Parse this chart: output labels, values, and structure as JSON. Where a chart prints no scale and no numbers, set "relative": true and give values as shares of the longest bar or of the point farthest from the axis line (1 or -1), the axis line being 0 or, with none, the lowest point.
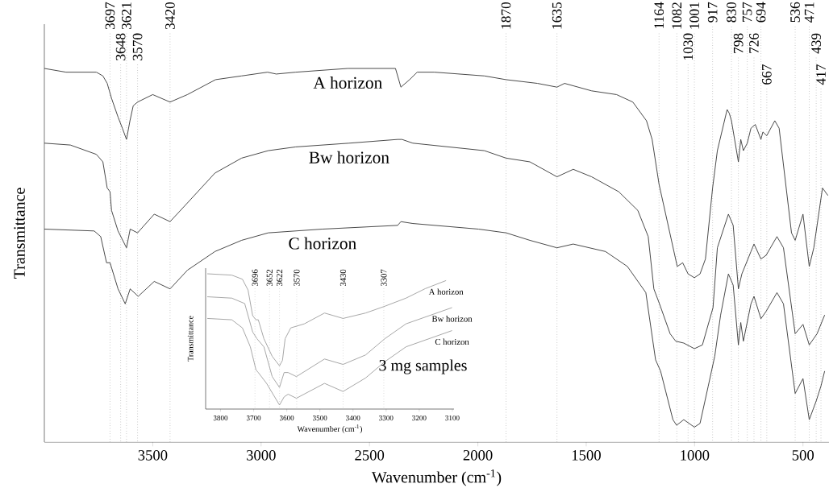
{
  "chart_data": [
    {
      "type": "line",
      "xlabel": "Wavenumber (cm$^{-1}$)",
      "ylabel": "Transmittance",
      "relative": true,
      "xlim": [
        4000,
        380
      ],
      "xticks": [
        3500,
        3000,
        2500,
        2000,
        1500,
        1000,
        500
      ],
      "tick_labels": "x",
      "series": [
        {
          "name": "A horizon",
          "color": "#3c3c3c",
          "x": [
            4000,
            3900,
            3800,
            3760,
            3730,
            3710,
            3700,
            3690,
            3660,
            3640,
            3621,
            3605,
            3590,
            3570,
            3500,
            3420,
            3340,
            3210,
            3090,
            2970,
            2930,
            2840,
            2600,
            2380,
            2355,
            2315,
            2280,
            2200,
            1970,
            1870,
            1725,
            1635,
            1600,
            1475,
            1360,
            1285,
            1222,
            1196,
            1164,
            1080,
            1055,
            1030,
            1001,
            975,
            950,
            917,
            895,
            850,
            840,
            830,
            798,
            787,
            775,
            757,
            740,
            720,
            694,
            685,
            667,
            630,
            610,
            553,
            536,
            500,
            471,
            450,
            410,
            385
          ],
          "values": [
            1.0,
            0.99,
            0.99,
            0.99,
            0.98,
            0.96,
            0.94,
            0.92,
            0.87,
            0.84,
            0.81,
            0.86,
            0.9,
            0.91,
            0.93,
            0.91,
            0.93,
            0.97,
            0.98,
            0.99,
            0.985,
            0.99,
            1.0,
            1.0,
            0.95,
            0.97,
            0.99,
            0.99,
            0.98,
            0.97,
            0.96,
            0.95,
            0.96,
            0.94,
            0.93,
            0.91,
            0.86,
            0.81,
            0.69,
            0.47,
            0.48,
            0.45,
            0.44,
            0.45,
            0.49,
            0.68,
            0.78,
            0.89,
            0.88,
            0.86,
            0.75,
            0.81,
            0.78,
            0.8,
            0.84,
            0.85,
            0.81,
            0.83,
            0.82,
            0.86,
            0.84,
            0.56,
            0.54,
            0.61,
            0.47,
            0.52,
            0.68,
            0.66
          ]
        },
        {
          "name": "Bw horizon",
          "color": "#3c3c3c",
          "x": [
            4000,
            3880,
            3760,
            3730,
            3710,
            3697,
            3690,
            3660,
            3621,
            3604,
            3570,
            3493,
            3420,
            3340,
            3213,
            3090,
            2967,
            2840,
            2594,
            2370,
            2350,
            2300,
            1970,
            1870,
            1760,
            1635,
            1560,
            1475,
            1350,
            1262,
            1214,
            1188,
            1162,
            1113,
            1087,
            1050,
            1001,
            964,
            915,
            895,
            844,
            822,
            798,
            782,
            740,
            726,
            694,
            670,
            620,
            590,
            536,
            500,
            471,
            435,
            400
          ],
          "values": [
            0.8,
            0.795,
            0.77,
            0.75,
            0.68,
            0.67,
            0.62,
            0.565,
            0.52,
            0.57,
            0.56,
            0.61,
            0.59,
            0.64,
            0.72,
            0.76,
            0.78,
            0.79,
            0.8,
            0.81,
            0.81,
            0.8,
            0.78,
            0.76,
            0.75,
            0.71,
            0.73,
            0.71,
            0.67,
            0.62,
            0.55,
            0.41,
            0.37,
            0.29,
            0.27,
            0.265,
            0.25,
            0.26,
            0.36,
            0.52,
            0.61,
            0.58,
            0.41,
            0.45,
            0.51,
            0.53,
            0.49,
            0.5,
            0.55,
            0.52,
            0.29,
            0.315,
            0.26,
            0.29,
            0.34
          ]
        },
        {
          "name": "C horizon",
          "color": "#3c3c3c",
          "x": [
            4000,
            3770,
            3740,
            3713,
            3697,
            3660,
            3627,
            3604,
            3567,
            3493,
            3420,
            3340,
            3213,
            3090,
            2967,
            2717,
            2370,
            2355,
            2300,
            1997,
            1870,
            1760,
            1635,
            1560,
            1411,
            1310,
            1225,
            1180,
            1157,
            1100,
            1083,
            1050,
            1001,
            975,
            937,
            907,
            880,
            844,
            822,
            798,
            787,
            775,
            740,
            726,
            694,
            670,
            620,
            590,
            536,
            500,
            471,
            439,
            417,
            400
          ],
          "values": [
            0.57,
            0.565,
            0.55,
            0.48,
            0.48,
            0.41,
            0.37,
            0.41,
            0.39,
            0.43,
            0.41,
            0.46,
            0.51,
            0.54,
            0.56,
            0.57,
            0.58,
            0.59,
            0.585,
            0.57,
            0.56,
            0.54,
            0.52,
            0.53,
            0.51,
            0.47,
            0.4,
            0.22,
            0.19,
            0.06,
            0.045,
            0.06,
            0.04,
            0.05,
            0.15,
            0.23,
            0.34,
            0.45,
            0.42,
            0.26,
            0.32,
            0.27,
            0.37,
            0.39,
            0.33,
            0.35,
            0.4,
            0.37,
            0.13,
            0.17,
            0.06,
            0.11,
            0.15,
            0.19
          ]
        }
      ],
      "ref_lines": [
        {
          "axis": "x",
          "value": 3697,
          "label": "3697",
          "color": "#8c8c8c",
          "line_style": "dotted"
        },
        {
          "axis": "x",
          "value": 3648,
          "label": "3648",
          "color": "#8c8c8c",
          "line_style": "dotted"
        },
        {
          "axis": "x",
          "value": 3621,
          "label": "3621",
          "color": "#8c8c8c",
          "line_style": "dotted"
        },
        {
          "axis": "x",
          "value": 3570,
          "label": "3570",
          "color": "#8c8c8c",
          "line_style": "dotted"
        },
        {
          "axis": "x",
          "value": 3420,
          "label": "3420",
          "color": "#8c8c8c",
          "line_style": "dotted"
        },
        {
          "axis": "x",
          "value": 1870,
          "label": "1870",
          "color": "#8c8c8c",
          "line_style": "dotted"
        },
        {
          "axis": "x",
          "value": 1635,
          "label": "1635",
          "color": "#8c8c8c",
          "line_style": "dotted"
        },
        {
          "axis": "x",
          "value": 1164,
          "label": "1164",
          "color": "#8c8c8c",
          "line_style": "dotted"
        },
        {
          "axis": "x",
          "value": 1082,
          "label": "1082",
          "color": "#8c8c8c",
          "line_style": "dotted"
        },
        {
          "axis": "x",
          "value": 1030,
          "label": "1030",
          "color": "#8c8c8c",
          "line_style": "dotted"
        },
        {
          "axis": "x",
          "value": 1001,
          "label": "1001",
          "color": "#8c8c8c",
          "line_style": "dotted"
        },
        {
          "axis": "x",
          "value": 917,
          "label": "917",
          "color": "#8c8c8c",
          "line_style": "dotted"
        },
        {
          "axis": "x",
          "value": 830,
          "label": "830",
          "color": "#8c8c8c",
          "line_style": "dotted"
        },
        {
          "axis": "x",
          "value": 798,
          "label": "798",
          "color": "#8c8c8c",
          "line_style": "dotted"
        },
        {
          "axis": "x",
          "value": 757,
          "label": "757",
          "color": "#8c8c8c",
          "line_style": "dotted"
        },
        {
          "axis": "x",
          "value": 726,
          "label": "726",
          "color": "#8c8c8c",
          "line_style": "dotted"
        },
        {
          "axis": "x",
          "value": 694,
          "label": "694",
          "color": "#8c8c8c",
          "line_style": "dotted"
        },
        {
          "axis": "x",
          "value": 667,
          "label": "667",
          "color": "#8c8c8c",
          "line_style": "dotted"
        },
        {
          "axis": "x",
          "value": 536,
          "label": "536",
          "color": "#8c8c8c",
          "line_style": "dotted"
        },
        {
          "axis": "x",
          "value": 471,
          "label": "471",
          "color": "#8c8c8c",
          "line_style": "dotted"
        },
        {
          "axis": "x",
          "value": 439,
          "label": "439",
          "color": "#8c8c8c",
          "line_style": "dotted"
        },
        {
          "axis": "x",
          "value": 417,
          "label": "417",
          "color": "#8c8c8c",
          "line_style": "dotted"
        }
      ]
    },
    {
      "type": "line",
      "xlabel": "Wavenumber (cm$^{-1}$)",
      "ylabel": "Transmittance",
      "relative": true,
      "xlim": [
        3845,
        3095
      ],
      "xticks": [
        3800,
        3700,
        3600,
        3500,
        3400,
        3300,
        3200,
        3100
      ],
      "tick_labels": "x",
      "series": [
        {
          "name": "A horizon",
          "color": "#a0a0a0",
          "x": [
            3840,
            3766,
            3734,
            3717,
            3703,
            3693,
            3686,
            3669,
            3644,
            3622,
            3613,
            3605,
            3588,
            3547,
            3486,
            3430,
            3362,
            3304,
            3240,
            3182,
            3119
          ],
          "values": [
            1.0,
            0.99,
            0.96,
            0.88,
            0.69,
            0.66,
            0.66,
            0.52,
            0.39,
            0.32,
            0.36,
            0.52,
            0.6,
            0.63,
            0.71,
            0.67,
            0.71,
            0.76,
            0.82,
            0.89,
            0.95
          ]
        },
        {
          "name": "Bw horizon",
          "color": "#a0a0a0",
          "x": [
            3840,
            3766,
            3727,
            3703,
            3690,
            3669,
            3644,
            3622,
            3608,
            3596,
            3571,
            3486,
            3430,
            3362,
            3304,
            3240,
            3101
          ],
          "values": [
            0.83,
            0.82,
            0.78,
            0.57,
            0.52,
            0.46,
            0.24,
            0.16,
            0.27,
            0.27,
            0.24,
            0.37,
            0.33,
            0.4,
            0.52,
            0.63,
            0.75
          ]
        },
        {
          "name": "C horizon",
          "color": "#a0a0a0",
          "x": [
            3840,
            3766,
            3734,
            3710,
            3693,
            3686,
            3661,
            3622,
            3608,
            3596,
            3571,
            3486,
            3430,
            3362,
            3304,
            3240,
            3101
          ],
          "values": [
            0.67,
            0.66,
            0.6,
            0.46,
            0.29,
            0.27,
            0.19,
            0.03,
            0.09,
            0.11,
            0.08,
            0.19,
            0.13,
            0.23,
            0.35,
            0.46,
            0.58
          ]
        }
      ],
      "ref_lines": [
        {
          "axis": "x",
          "value": 3696,
          "label": "3696",
          "color": "#b4b4b4",
          "line_style": "dotted"
        },
        {
          "axis": "x",
          "value": 3652,
          "label": "3652",
          "color": "#b4b4b4",
          "line_style": "dotted"
        },
        {
          "axis": "x",
          "value": 3622,
          "label": "3622",
          "color": "#b4b4b4",
          "line_style": "dotted"
        },
        {
          "axis": "x",
          "value": 3570,
          "label": "3570",
          "color": "#b4b4b4",
          "line_style": "dotted"
        },
        {
          "axis": "x",
          "value": 3430,
          "label": "3430",
          "color": "#b4b4b4",
          "line_style": "dotted"
        },
        {
          "axis": "x",
          "value": 3307,
          "label": "3307",
          "color": "#b4b4b4",
          "line_style": "dotted"
        }
      ],
      "annotations": [
        "3 mg samples"
      ]
    }
  ]
}
